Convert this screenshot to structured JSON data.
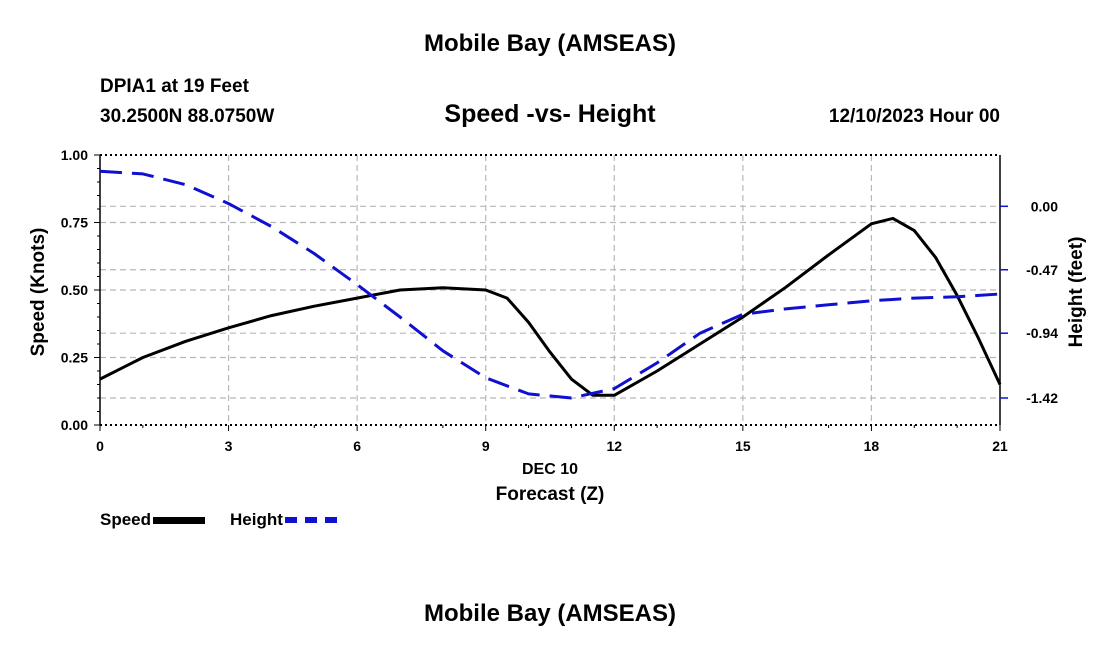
{
  "header": {
    "title": "Mobile Bay (AMSEAS)",
    "station": "DPIA1 at 19 Feet",
    "coords": "30.2500N  88.0750W",
    "subtitle": "Speed -vs- Height",
    "datetime": "12/10/2023 Hour 00"
  },
  "footer": {
    "title": "Mobile Bay (AMSEAS)"
  },
  "legend": {
    "speed_label": "Speed",
    "height_label": "Height"
  },
  "colors": {
    "speed": "#000000",
    "height": "#1010d0",
    "grid": "#b8b8b8"
  },
  "chart_data": {
    "type": "line",
    "title": "Speed -vs- Height",
    "xlabel": "Forecast (Z)",
    "xlabel_date": "DEC 10",
    "ylabel_left": "Speed (Knots)",
    "ylabel_right": "Height (feet)",
    "xlim": [
      0,
      21
    ],
    "ylim_left": [
      0,
      1.0
    ],
    "ylim_right": [
      -1.62,
      0.38
    ],
    "x_ticks": [
      "0",
      "3",
      "6",
      "9",
      "12",
      "15",
      "18",
      "21"
    ],
    "y_left_ticks": [
      "0.00",
      "0.25",
      "0.50",
      "0.75",
      "1.00"
    ],
    "y_right_ticks": [
      "-1.42",
      "-0.94",
      "-0.47",
      "0.00"
    ],
    "y_right_tick_values": [
      -1.42,
      -0.94,
      -0.47,
      0.0
    ],
    "grid": true,
    "series": [
      {
        "name": "Speed",
        "axis": "left",
        "style": "solid",
        "x": [
          0,
          1,
          2,
          3,
          4,
          5,
          6,
          7,
          8,
          9,
          9.5,
          10,
          10.5,
          11,
          11.5,
          12,
          13,
          14,
          15,
          16,
          17,
          18,
          18.5,
          19,
          19.5,
          20,
          20.5,
          21
        ],
        "values": [
          0.17,
          0.25,
          0.31,
          0.36,
          0.405,
          0.44,
          0.47,
          0.5,
          0.508,
          0.5,
          0.47,
          0.38,
          0.27,
          0.17,
          0.11,
          0.11,
          0.2,
          0.3,
          0.4,
          0.51,
          0.63,
          0.745,
          0.765,
          0.72,
          0.62,
          0.48,
          0.32,
          0.15
        ]
      },
      {
        "name": "Height",
        "axis": "right",
        "style": "dashed",
        "x": [
          0,
          1,
          2,
          3,
          4,
          5,
          6,
          7,
          8,
          9,
          10,
          11,
          12,
          13,
          14,
          15,
          16,
          17,
          18,
          19,
          20,
          21
        ],
        "values": [
          0.26,
          0.24,
          0.16,
          0.02,
          -0.15,
          -0.35,
          -0.58,
          -0.82,
          -1.07,
          -1.27,
          -1.39,
          -1.42,
          -1.35,
          -1.16,
          -0.94,
          -0.8,
          -0.76,
          -0.73,
          -0.7,
          -0.68,
          -0.67,
          -0.65
        ]
      }
    ]
  }
}
